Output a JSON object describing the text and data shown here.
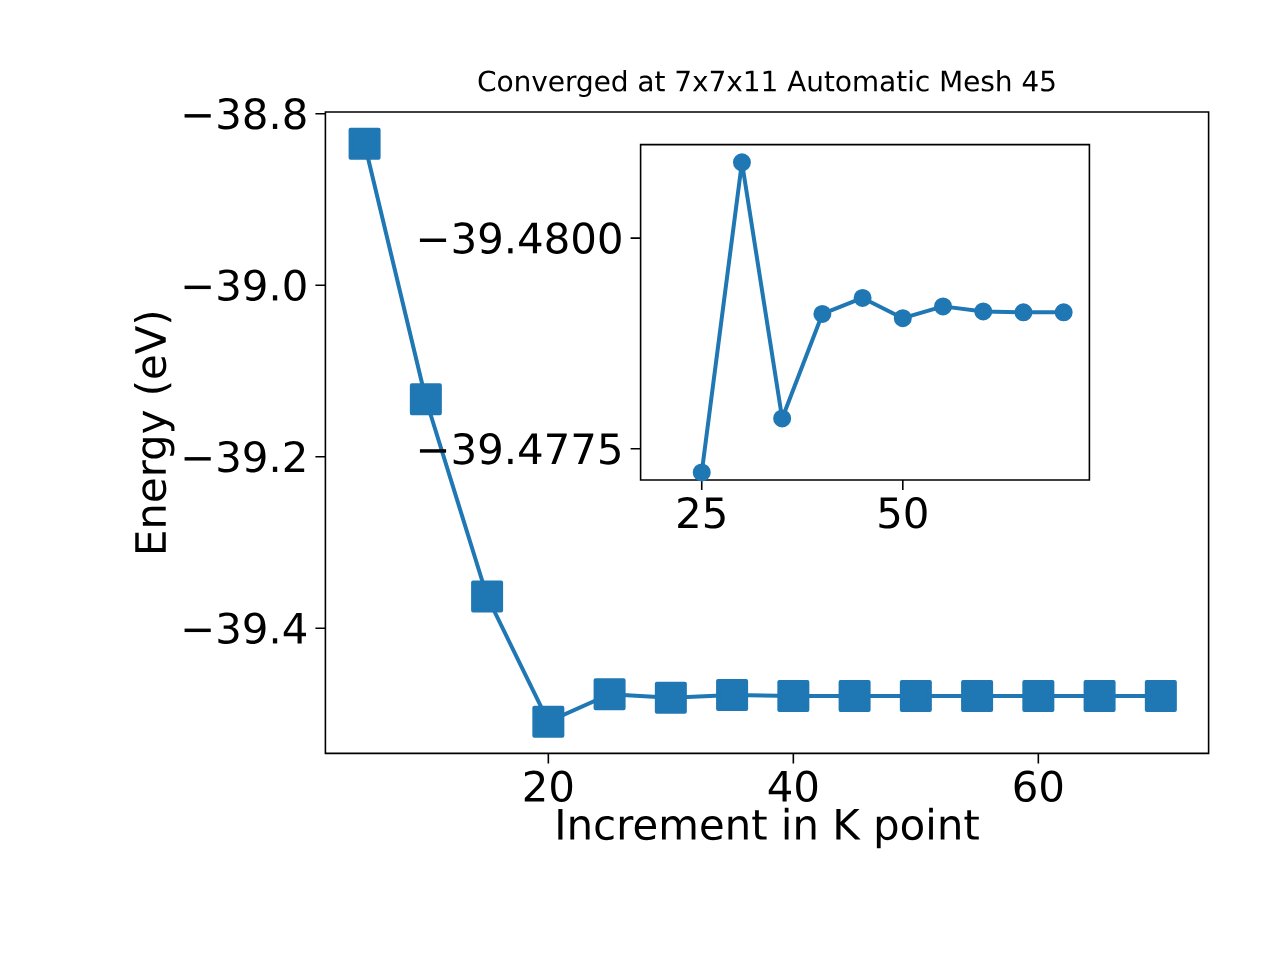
{
  "chart_data": [
    {
      "type": "line",
      "title": "Converged at 7x7x11 Automatic Mesh 45",
      "xlabel": "Increment in K point",
      "ylabel": "Energy (eV)",
      "x": [
        5,
        10,
        15,
        20,
        25,
        30,
        35,
        40,
        45,
        50,
        55,
        60,
        65,
        70
      ],
      "values": [
        -38.835,
        -39.133,
        -39.363,
        -39.509,
        -39.477,
        -39.481,
        -39.478,
        -39.479,
        -39.479,
        -39.479,
        -39.479,
        -39.479,
        -39.479,
        -39.479
      ],
      "color": "#1f77b4",
      "marker": "square",
      "xlim": [
        1.8,
        73.9
      ],
      "ylim": [
        -39.546,
        -38.798
      ],
      "xticks": [
        20,
        40,
        60
      ],
      "yticks": [
        {
          "value": -39.4,
          "label": "−39.4"
        },
        {
          "value": -39.2,
          "label": "−39.2"
        },
        {
          "value": -39.0,
          "label": "−39.0"
        },
        {
          "value": -38.8,
          "label": "−38.8"
        }
      ]
    },
    {
      "type": "line",
      "x": [
        25,
        30,
        35,
        40,
        45,
        50,
        55,
        60,
        65,
        70
      ],
      "values": [
        -39.47722,
        -39.4809,
        -39.47786,
        -39.4791,
        -39.47929,
        -39.47905,
        -39.47919,
        -39.47913,
        -39.47912,
        -39.47912
      ],
      "color": "#1f77b4",
      "marker": "circle",
      "xlim": [
        17.4,
        73.2
      ],
      "ylim": [
        -39.47713,
        -39.48111
      ],
      "xticks": [
        25,
        50
      ],
      "yticks": [
        {
          "value": -39.48,
          "label": "−39.4800"
        },
        {
          "value": -39.4775,
          "label": "−39.4775"
        }
      ]
    }
  ]
}
